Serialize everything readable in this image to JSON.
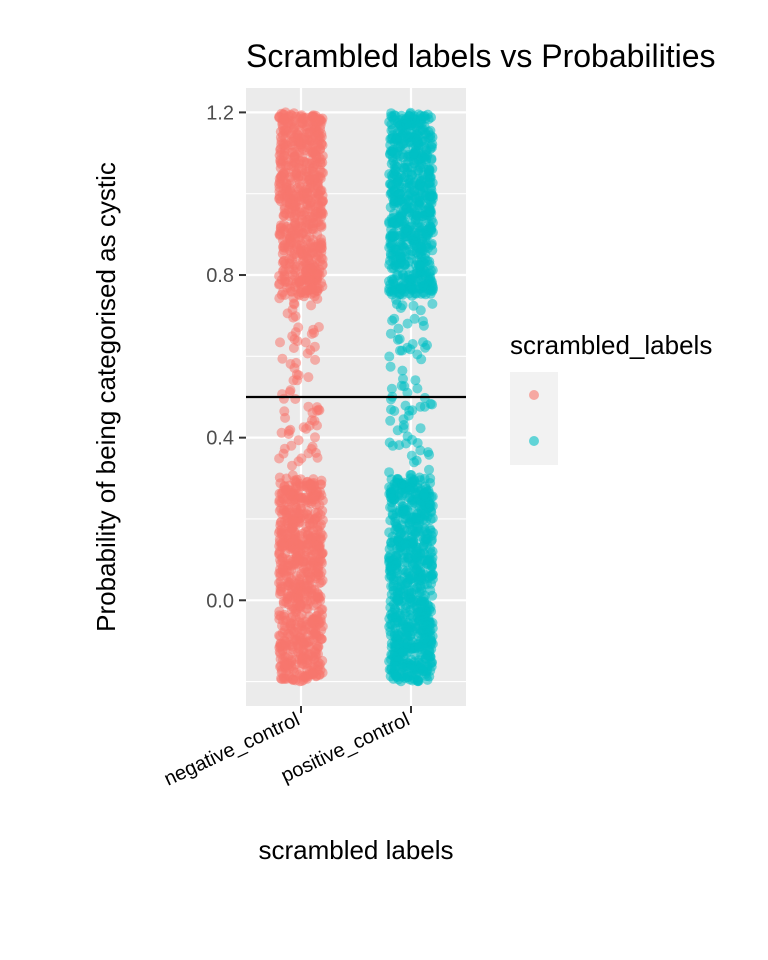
{
  "chart_data": {
    "type": "scatter",
    "title": "Scrambled labels vs Probabilities",
    "xlabel": "scrambled labels",
    "ylabel": "Probability of being categorised as cystic",
    "categories": [
      "negative_control",
      "positive_control"
    ],
    "ylim": [
      -0.26,
      1.26
    ],
    "yticks": [
      0.0,
      0.4,
      0.8,
      1.2
    ],
    "ytick_labels": [
      "0.0",
      "0.4",
      "0.8",
      "1.2"
    ],
    "hline": 0.5,
    "jitter": "uniform horizontal jitter within each category",
    "y_range_per_category": [
      -0.2,
      1.2
    ],
    "density_profile": [
      {
        "y_from": -0.2,
        "y_to": 0.3,
        "relative_density": "high"
      },
      {
        "y_from": 0.3,
        "y_to": 0.75,
        "relative_density": "low"
      },
      {
        "y_from": 0.75,
        "y_to": 1.2,
        "relative_density": "high"
      }
    ],
    "grid": true,
    "legend": {
      "title": "scrambled_labels",
      "position": "right",
      "entries": [
        {
          "key": "negative_control",
          "color": "#F8766D"
        },
        {
          "key": "positive_control",
          "color": "#00BFC4"
        }
      ]
    },
    "series_colors": [
      "#F8766D",
      "#00BFC4"
    ]
  }
}
